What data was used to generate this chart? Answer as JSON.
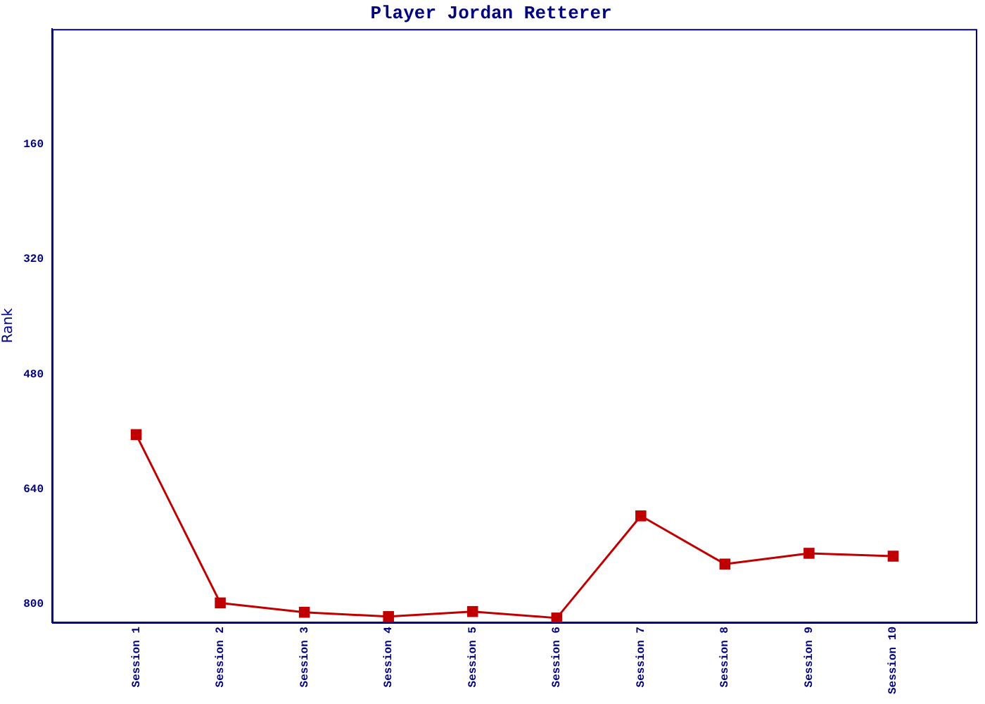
{
  "chart_data": {
    "type": "line",
    "title": "Player Jordan Retterer",
    "ylabel": "Rank",
    "categories": [
      "Session 1",
      "Session 2",
      "Session 3",
      "Session 4",
      "Session 5",
      "Session 6",
      "Session 7",
      "Session 8",
      "Session 9",
      "Session 10"
    ],
    "series": [
      {
        "color": "#c00000",
        "values": [
          564,
          798,
          811,
          817,
          810,
          819,
          677,
          744,
          729,
          733
        ]
      }
    ],
    "ylim": [
      825,
      0
    ],
    "yticks": [
      160,
      320,
      480,
      640,
      800
    ],
    "marker": "square",
    "line_style": "solid"
  }
}
